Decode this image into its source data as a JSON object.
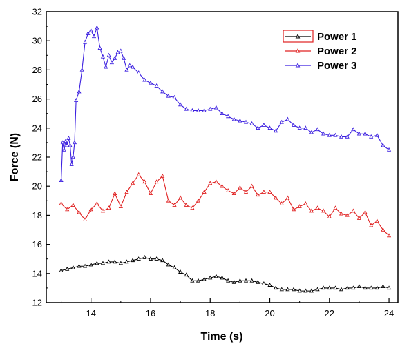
{
  "chart_data": {
    "type": "line",
    "title": "",
    "xlabel": "Time (s)",
    "ylabel": "Force (N)",
    "xlim": [
      12.5,
      24.3
    ],
    "ylim": [
      12,
      32
    ],
    "x_ticks": [
      14,
      16,
      18,
      20,
      22,
      24
    ],
    "y_ticks": [
      12,
      14,
      16,
      18,
      20,
      22,
      24,
      26,
      28,
      30,
      32
    ],
    "grid": false,
    "legend_position": "top-right",
    "marker": "open-triangle",
    "series": [
      {
        "name": "Power 1",
        "color": "#000000",
        "x": [
          13.0,
          13.2,
          13.4,
          13.6,
          13.8,
          14.0,
          14.2,
          14.4,
          14.6,
          14.8,
          15.0,
          15.2,
          15.4,
          15.6,
          15.8,
          16.0,
          16.2,
          16.4,
          16.6,
          16.8,
          17.0,
          17.2,
          17.4,
          17.6,
          17.8,
          18.0,
          18.2,
          18.4,
          18.6,
          18.8,
          19.0,
          19.2,
          19.4,
          19.6,
          19.8,
          20.0,
          20.2,
          20.4,
          20.6,
          20.8,
          21.0,
          21.2,
          21.4,
          21.6,
          21.8,
          22.0,
          22.2,
          22.4,
          22.6,
          22.8,
          23.0,
          23.2,
          23.4,
          23.6,
          23.8,
          24.0
        ],
        "y": [
          14.2,
          14.3,
          14.4,
          14.5,
          14.5,
          14.6,
          14.7,
          14.7,
          14.8,
          14.8,
          14.7,
          14.8,
          14.9,
          15.0,
          15.1,
          15.0,
          15.0,
          14.9,
          14.6,
          14.4,
          14.1,
          13.9,
          13.5,
          13.5,
          13.6,
          13.7,
          13.8,
          13.7,
          13.5,
          13.4,
          13.5,
          13.5,
          13.5,
          13.4,
          13.3,
          13.2,
          13.0,
          12.9,
          12.9,
          12.9,
          12.8,
          12.8,
          12.8,
          12.9,
          13.0,
          13.0,
          13.0,
          12.9,
          13.0,
          13.0,
          13.1,
          13.0,
          13.0,
          13.0,
          13.1,
          13.0
        ]
      },
      {
        "name": "Power 2",
        "color": "#e02020",
        "x": [
          13.0,
          13.2,
          13.4,
          13.6,
          13.8,
          14.0,
          14.2,
          14.4,
          14.6,
          14.8,
          15.0,
          15.2,
          15.4,
          15.6,
          15.8,
          16.0,
          16.2,
          16.4,
          16.6,
          16.8,
          17.0,
          17.2,
          17.4,
          17.6,
          17.8,
          18.0,
          18.2,
          18.4,
          18.6,
          18.8,
          19.0,
          19.2,
          19.4,
          19.6,
          19.8,
          20.0,
          20.2,
          20.4,
          20.6,
          20.8,
          21.0,
          21.2,
          21.4,
          21.6,
          21.8,
          22.0,
          22.2,
          22.4,
          22.6,
          22.8,
          23.0,
          23.2,
          23.4,
          23.6,
          23.8,
          24.0
        ],
        "y": [
          18.8,
          18.4,
          18.7,
          18.2,
          17.7,
          18.4,
          18.8,
          18.3,
          18.5,
          19.5,
          18.6,
          19.6,
          20.2,
          20.8,
          20.3,
          19.5,
          20.3,
          20.7,
          19.0,
          18.7,
          19.2,
          18.7,
          18.5,
          19.0,
          19.6,
          20.2,
          20.3,
          20.0,
          19.7,
          19.5,
          19.9,
          19.6,
          20.0,
          19.4,
          19.6,
          19.6,
          19.2,
          18.8,
          19.2,
          18.4,
          18.6,
          18.8,
          18.3,
          18.5,
          18.3,
          17.9,
          18.5,
          18.1,
          18.0,
          18.3,
          17.8,
          18.2,
          17.3,
          17.6,
          17.0,
          16.6
        ]
      },
      {
        "name": "Power 3",
        "color": "#3b1fe0",
        "x": [
          13.0,
          13.05,
          13.1,
          13.15,
          13.2,
          13.25,
          13.3,
          13.35,
          13.4,
          13.45,
          13.5,
          13.6,
          13.7,
          13.8,
          13.9,
          14.0,
          14.1,
          14.2,
          14.3,
          14.4,
          14.5,
          14.6,
          14.7,
          14.8,
          14.9,
          15.0,
          15.1,
          15.2,
          15.3,
          15.4,
          15.6,
          15.8,
          16.0,
          16.2,
          16.4,
          16.6,
          16.8,
          17.0,
          17.2,
          17.4,
          17.6,
          17.8,
          18.0,
          18.2,
          18.4,
          18.6,
          18.8,
          19.0,
          19.2,
          19.4,
          19.6,
          19.8,
          20.0,
          20.2,
          20.4,
          20.6,
          20.8,
          21.0,
          21.2,
          21.4,
          21.6,
          21.8,
          22.0,
          22.2,
          22.4,
          22.6,
          22.8,
          23.0,
          23.2,
          23.4,
          23.6,
          23.8,
          24.0
        ],
        "y": [
          20.4,
          23.0,
          22.5,
          23.1,
          22.8,
          23.3,
          22.8,
          21.5,
          22.0,
          23.0,
          25.9,
          26.5,
          28.0,
          29.9,
          30.5,
          30.7,
          30.3,
          30.9,
          29.5,
          28.9,
          28.2,
          29.0,
          28.5,
          28.8,
          29.2,
          29.3,
          28.8,
          28.0,
          28.3,
          28.2,
          27.8,
          27.3,
          27.1,
          26.9,
          26.5,
          26.2,
          26.1,
          25.6,
          25.3,
          25.2,
          25.2,
          25.2,
          25.3,
          25.4,
          25.0,
          24.8,
          24.6,
          24.5,
          24.4,
          24.3,
          24.0,
          24.2,
          24.0,
          23.8,
          24.4,
          24.6,
          24.2,
          24.0,
          24.0,
          23.7,
          23.9,
          23.6,
          23.5,
          23.5,
          23.4,
          23.4,
          23.9,
          23.6,
          23.6,
          23.4,
          23.5,
          22.8,
          22.5
        ]
      }
    ]
  }
}
